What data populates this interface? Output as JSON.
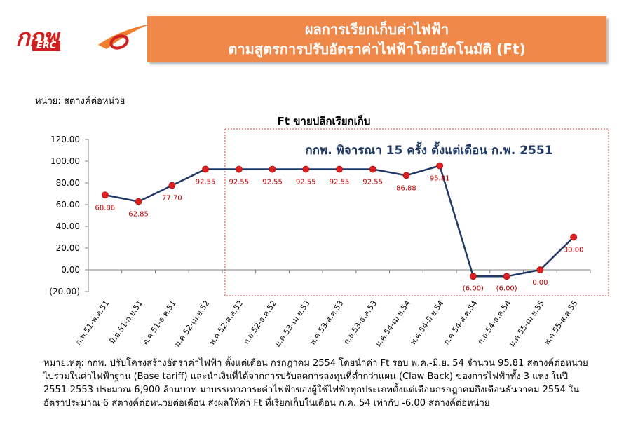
{
  "header": {
    "logo_text": "กกพ",
    "logo_sub": "ERC",
    "title_line1": "ผลการเรียกเก็บค่าไฟฟ้า",
    "title_line2": "ตามสูตรการปรับอัตราค่าไฟฟ้าโดยอัตโนมัติ (Ft)"
  },
  "unit_label": "หน่วย: สตางค์ต่อหน่วย",
  "chart_data": {
    "type": "line",
    "title": "Ft ขายปลีกเรียกเก็บ",
    "annotation": "กกพ. พิจารณา 15 ครั้ง ตั้งแต่เดือน ก.พ. 2551",
    "categories": [
      "ก.พ.51-พ.ค.51",
      "มิ.ย.51-ก.ย.51",
      "ต.ค.51-ธ.ค.51",
      "ม.ค.52-เม.ย.52",
      "พ.ค.52-ส.ค.52",
      "ก.ย.52-ธ.ค.52",
      "ม.ค.53-เม.ย.53",
      "พ.ค.53-ส.ค.53",
      "ก.ย.53-ธ.ค.53",
      "ม.ค.54-เม.ย.54",
      "พ.ค.54-มิ.ย.54",
      "ก.ค.54-ส.ค.54",
      "ก.ย.54-ธ.ค.54",
      "ม.ค.55-เม.ย.55",
      "พ.ค.55-ส.ค.55"
    ],
    "values": [
      68.86,
      62.85,
      77.7,
      92.55,
      92.55,
      92.55,
      92.55,
      92.55,
      92.55,
      86.88,
      95.81,
      -6.0,
      -6.0,
      0.0,
      30.0
    ],
    "data_labels": [
      "68.86",
      "62.85",
      "77.70",
      "92.55",
      "92.55",
      "92.55",
      "92.55",
      "92.55",
      "92.55",
      "86.88",
      "95.81",
      "(6.00)",
      "(6.00)",
      "0.00",
      "30.00"
    ],
    "y_ticks": [
      "120.00",
      "100.00",
      "80.00",
      "60.00",
      "40.00",
      "20.00",
      "0.00",
      "(20.00)"
    ],
    "y_tick_values": [
      120,
      100,
      80,
      60,
      40,
      20,
      0,
      -20
    ],
    "ylim": [
      -20,
      120
    ],
    "grid": false,
    "colors": {
      "line": "#1f3864",
      "marker": "#e02020",
      "data_label": "#c00000",
      "highlight_box": "#d04040",
      "annotation": "#1f3864"
    }
  },
  "note": "หมายเหตุ: กกพ. ปรับโครงสร้างอัตราค่าไฟฟ้า ตั้งแต่เดือน กรกฎาคม 2554 โดยนำค่า Ft รอบ พ.ค.-มิ.ย. 54 จำนวน 95.81 สตางค์ต่อหน่วยไปรวมในค่าไฟฟ้าฐาน (Base tariff) และนำเงินที่ได้จากการปรับลดการลงทุนที่ต่ำกว่าแผน (Claw Back) ของการไฟฟ้าทั้ง 3 แห่ง ในปี 2551-2553 ประมาณ 6,900 ล้านบาท มาบรรเทาภาระค่าไฟฟ้าของผู้ใช้ไฟฟ้าทุกประเภทตั้งแต่เดือนกรกฎาคมถึงเดือนธันวาคม 2554 ในอัตราประมาณ 6 สตางค์ต่อหน่วยต่อเดือน ส่งผลให้ค่า Ft ที่เรียกเก็บในเดือน ก.ค. 54 เท่ากับ -6.00 สตางค์ต่อหน่วย"
}
